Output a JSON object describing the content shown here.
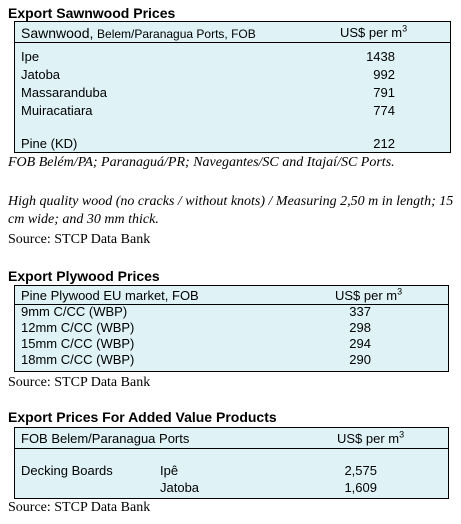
{
  "sawnwood": {
    "title": "Export Sawnwood Prices",
    "header_label_a": "Sawnwood,",
    "header_label_b": "Belem/Paranagua Ports, FOB",
    "header_unit": "US$ per m",
    "header_unit_sup": "3",
    "rows": [
      {
        "name": "Ipe",
        "price": "1438"
      },
      {
        "name": "Jatoba",
        "price": "992"
      },
      {
        "name": "Massaranduba",
        "price": "791"
      },
      {
        "name": "Muiracatiara",
        "price": "774"
      },
      {
        "name": "Pine (KD)",
        "price": "212"
      }
    ],
    "note1": "FOB Belém/PA; Paranaguá/PR; Navegantes/SC and Itajaí/SC Ports.",
    "note2": "High quality wood (no cracks / without knots) / Measuring 2,50 m in length; 15 cm wide; and 30 mm thick.",
    "source": "Source: STCP Data Bank"
  },
  "plywood": {
    "title": "Export Plywood Prices",
    "header_label": "Pine Plywood EU market, FOB",
    "header_unit": "US$ per m",
    "header_unit_sup": "3",
    "rows": [
      {
        "name": "9mm C/CC (WBP)",
        "price": "337"
      },
      {
        "name": "12mm C/CC (WBP)",
        "price": "298"
      },
      {
        "name": "15mm C/CC (WBP)",
        "price": "294"
      },
      {
        "name": "18mm C/CC (WBP)",
        "price": "290"
      }
    ],
    "source": "Source: STCP Data Bank"
  },
  "added_value": {
    "title": "Export Prices For Added Value Products",
    "header_label": "FOB Belem/Paranagua Ports",
    "header_unit": "US$ per m",
    "header_unit_sup": "3",
    "product": "Decking Boards",
    "rows": [
      {
        "species": "Ipê",
        "price": "2,575"
      },
      {
        "species": "Jatoba",
        "price": "1,609"
      }
    ],
    "source": "Source: STCP Data Bank"
  }
}
